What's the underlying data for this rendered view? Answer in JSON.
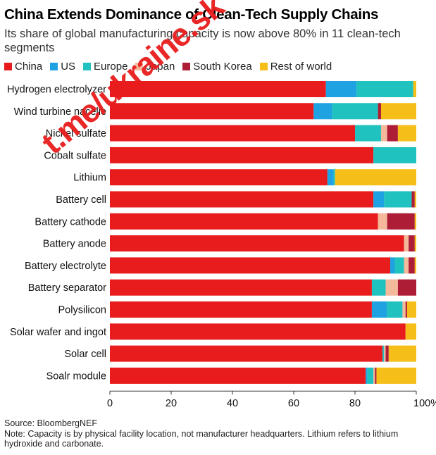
{
  "header": {
    "title": "China Extends Dominance of Clean-Tech Supply Chains",
    "subtitle": "Its share of global manufacturing capacity is now above 80% in 11 clean-tech segments"
  },
  "footer": {
    "source": "Source: BloombergNEF",
    "note": "Note: Capacity is by physical facility location, not manufacturer headquarters. Lithium refers to lithium hydroxide and carbonate."
  },
  "watermark": "t.me/ukraine.sk",
  "chart_data": {
    "type": "bar",
    "orientation": "horizontal",
    "stacked": true,
    "xlim": [
      0,
      100
    ],
    "x_ticks": [
      "0",
      "20",
      "40",
      "60",
      "80",
      "100%"
    ],
    "grid": false,
    "legend_position": "top",
    "categories": [
      "Hydrogen electrolyzer",
      "Wind turbine nacelle",
      "Nickel sulfate",
      "Cobalt sulfate",
      "Lithium",
      "Battery cell",
      "Battery cathode",
      "Battery anode",
      "Battery electrolyte",
      "Battery separator",
      "Polysilicon",
      "Solar wafer and ingot",
      "Solar cell",
      "Soalr module"
    ],
    "series": [
      {
        "name": "China",
        "color": "#e81c1c",
        "values": [
          70.5,
          66.5,
          80,
          86,
          71,
          86,
          87.5,
          96,
          91.5,
          85.5,
          85.5,
          96.5,
          89,
          83.5
        ]
      },
      {
        "name": "US",
        "color": "#1fa2e1",
        "values": [
          10,
          6,
          0,
          0,
          2,
          3.5,
          0,
          0,
          1.5,
          0,
          5,
          0,
          0,
          0.5
        ]
      },
      {
        "name": "Europe",
        "color": "#1fc2bf",
        "values": [
          18.5,
          15,
          8.5,
          14,
          0.5,
          9,
          0,
          0,
          3,
          4.5,
          5,
          0,
          0.5,
          2
        ]
      },
      {
        "name": "Japan",
        "color": "#f4b89a",
        "values": [
          0,
          0,
          2,
          0,
          0,
          0,
          3,
          1.5,
          1.5,
          4,
          1,
          0,
          0.5,
          0.5
        ]
      },
      {
        "name": "South Korea",
        "color": "#ad1d35",
        "values": [
          0,
          1,
          3.5,
          0,
          0,
          1,
          9,
          2,
          2,
          6,
          0.5,
          0,
          1,
          0.5
        ]
      },
      {
        "name": "Rest of world",
        "color": "#f6be19",
        "values": [
          1,
          11.5,
          6,
          0,
          26.5,
          0.5,
          0.5,
          0.5,
          0.5,
          0,
          3,
          3.5,
          9,
          13
        ]
      }
    ]
  }
}
